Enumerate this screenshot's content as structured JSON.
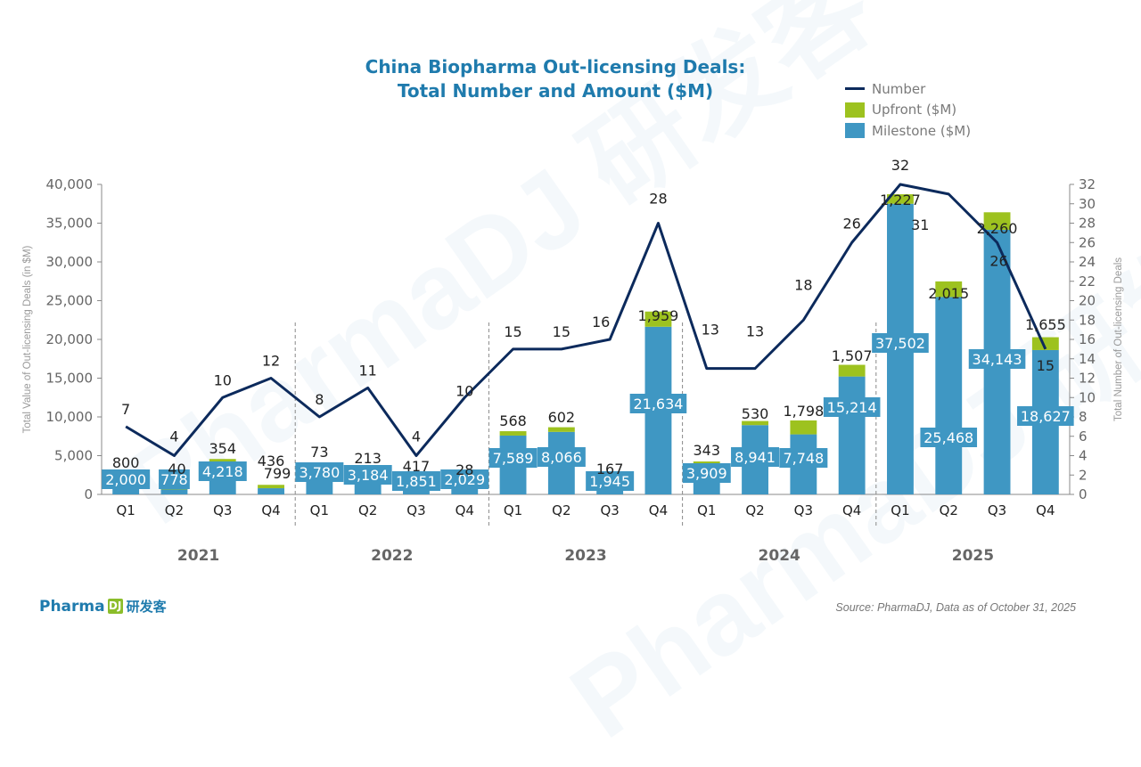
{
  "title_line1": "China Biopharma Out-licensing Deals:",
  "title_line2": "Total Number and Amount ($M)",
  "legend": [
    {
      "label": "Number",
      "kind": "line",
      "color": "#0c2a5c"
    },
    {
      "label": "Upfront ($M)",
      "kind": "swatch",
      "color": "#9dc21f"
    },
    {
      "label": "Milestone ($M)",
      "kind": "swatch",
      "color": "#3f97c3"
    }
  ],
  "source": "Source: PharmaDJ, Data as of October 31, 2025",
  "logo": {
    "text": "Pharma",
    "box": "DJ",
    "cn": "研发客"
  },
  "watermark": "PharmaDJ 研发客",
  "colors": {
    "milestone": "#3f97c3",
    "upfront": "#9dc21f",
    "line": "#0c2a5c",
    "title": "#1f7bad",
    "axis_text": "#666666"
  },
  "chart_data": {
    "type": "bar",
    "stacked": true,
    "title": "China Biopharma Out-licensing Deals: Total Number and Amount ($M)",
    "ylabel": "Total Value of Out-licensing Deals (in $M)",
    "y2label": "Total Number of Out-licensing Deals",
    "ylim": [
      0,
      40000
    ],
    "y2lim": [
      0,
      32
    ],
    "yticks": [
      "0",
      "5,000",
      "10,000",
      "15,000",
      "20,000",
      "25,000",
      "30,000",
      "35,000",
      "40,000"
    ],
    "y2ticks": [
      "0",
      "2",
      "4",
      "6",
      "8",
      "10",
      "12",
      "14",
      "16",
      "18",
      "20",
      "22",
      "24",
      "26",
      "28",
      "30",
      "32"
    ],
    "years": [
      "2021",
      "2022",
      "2023",
      "2024",
      "2025"
    ],
    "categories": [
      "Q1",
      "Q2",
      "Q3",
      "Q4",
      "Q1",
      "Q2",
      "Q3",
      "Q4",
      "Q1",
      "Q2",
      "Q3",
      "Q4",
      "Q1",
      "Q2",
      "Q3",
      "Q4",
      "Q1",
      "Q2",
      "Q3",
      "Q4"
    ],
    "legend_position": "top-right",
    "grid": false,
    "series": [
      {
        "name": "Milestone ($M)",
        "type": "bar",
        "values": [
          2000,
          778,
          4218,
          799,
          3780,
          3184,
          1851,
          2029,
          7589,
          8066,
          1945,
          21634,
          3909,
          8941,
          7748,
          15214,
          37502,
          25468,
          34143,
          18627
        ],
        "labels": [
          "2,000",
          "778",
          "4,218",
          "799",
          "3,780",
          "3,184",
          "1,851",
          "2,029",
          "7,589",
          "8,066",
          "1,945",
          "21,634",
          "3,909",
          "8,941",
          "7,748",
          "15,214",
          "37,502",
          "25,468",
          "34,143",
          "18,627"
        ]
      },
      {
        "name": "Upfront ($M)",
        "type": "bar",
        "values": [
          800,
          40,
          354,
          436,
          73,
          213,
          417,
          28,
          568,
          602,
          167,
          1959,
          343,
          530,
          1798,
          1507,
          1227,
          2015,
          2260,
          1655
        ],
        "labels": [
          "800",
          "40",
          "354",
          "436",
          "73",
          "213",
          "417",
          "28",
          "568",
          "602",
          "167",
          "1,959",
          "343",
          "530",
          "1,798",
          "1,507",
          "1,227",
          "2,015",
          "2,260",
          "1,655"
        ]
      },
      {
        "name": "Number",
        "type": "line",
        "axis": "right",
        "values": [
          7,
          4,
          10,
          12,
          8,
          11,
          4,
          10,
          15,
          15,
          16,
          28,
          13,
          13,
          18,
          26,
          32,
          31,
          26,
          15
        ],
        "labels": [
          "7",
          "4",
          "10",
          "12",
          "8",
          "11",
          "4",
          "10",
          "15",
          "15",
          "16",
          "28",
          "13",
          "13",
          "18",
          "26",
          "32",
          "31",
          "26",
          "15"
        ]
      }
    ]
  }
}
